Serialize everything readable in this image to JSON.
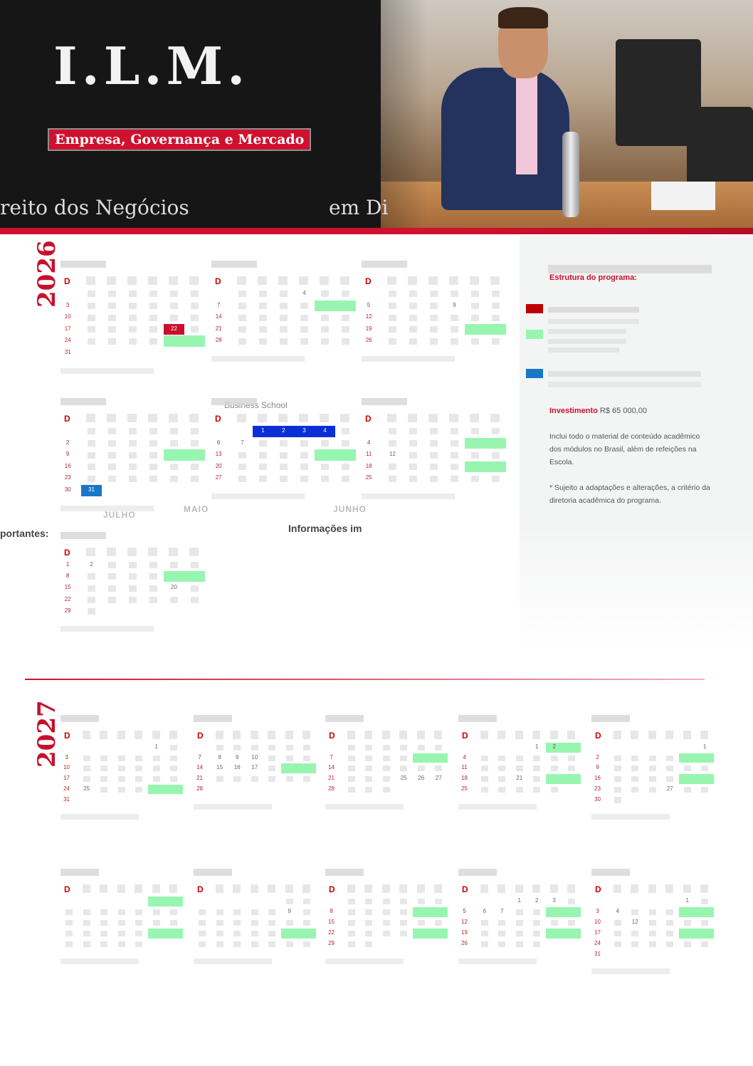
{
  "header": {
    "title": "I.L.M.",
    "tag": "Empresa, Governança e Mercado",
    "subtitle_left": "reito dos Negócios",
    "subtitle_right": "em Di"
  },
  "colors": {
    "accent": "#c8102e",
    "module": "#98f5b0",
    "red_day": "#c8102e",
    "blue_day": "#1877c9",
    "intl": "#0b2fd6"
  },
  "panel": {
    "structure_label": "Estrutura do programa:",
    "legend": [
      {
        "color": "#c00000"
      },
      {
        "color": "#98f5b0"
      },
      {
        "color": "#1877c9"
      }
    ],
    "investment_label": "Investimento",
    "investment_value": "R$ 65 000,00",
    "note1": "Inclui todo o material de conteúdo acadêmico dos módulos no Brasil, além de refeições na Escola.",
    "note2": "* Sujeito a adaptações e alterações, a critério da diretoria acadêmica do programa."
  },
  "fragments": {
    "business_school": "Business School",
    "info": "Informações im",
    "info2": "portantes:",
    "maio": "MAIO",
    "junho": "JUNHO",
    "julho": "JULHO"
  },
  "years": [
    "2026",
    "2027"
  ],
  "calendars": [
    {
      "weeks": [
        [
          null,
          "",
          "",
          "",
          "",
          "",
          ""
        ],
        [
          "3",
          "",
          "",
          "",
          "",
          "",
          ""
        ],
        [
          "10",
          "",
          "",
          "",
          "",
          "",
          ""
        ],
        [
          "17",
          "",
          "",
          "",
          "",
          "22",
          ""
        ],
        [
          "24",
          "",
          "",
          "",
          "",
          "",
          ""
        ],
        [
          "31",
          null,
          null,
          null,
          null,
          null,
          null
        ]
      ],
      "hl": [
        {
          "w": 3,
          "from": 5,
          "to": 5,
          "c": "red_day"
        },
        {
          "w": 4,
          "from": 5,
          "to": 6,
          "c": "module"
        }
      ]
    },
    {
      "weeks": [
        [
          null,
          "",
          "",
          "",
          "4",
          "",
          ""
        ],
        [
          "7",
          "",
          "",
          "",
          "",
          "",
          ""
        ],
        [
          "14",
          "",
          "",
          "",
          "",
          "",
          ""
        ],
        [
          "21",
          "",
          "",
          "",
          "",
          "",
          ""
        ],
        [
          "28",
          "",
          "",
          "",
          "",
          "",
          ""
        ]
      ],
      "hl": [
        {
          "w": 1,
          "from": 5,
          "to": 6,
          "c": "module"
        }
      ]
    },
    {
      "weeks": [
        [
          null,
          "",
          "",
          "",
          "",
          "",
          ""
        ],
        [
          "5",
          "",
          "",
          "",
          "9",
          "",
          ""
        ],
        [
          "12",
          "",
          "",
          "",
          "",
          "",
          ""
        ],
        [
          "19",
          "",
          "",
          "",
          "",
          "",
          ""
        ],
        [
          "26",
          "",
          "",
          "",
          "",
          "",
          ""
        ]
      ],
      "hl": [
        {
          "w": 3,
          "from": 5,
          "to": 6,
          "c": "module"
        }
      ]
    },
    {
      "weeks": [
        [
          null,
          "",
          "",
          "",
          "",
          "",
          ""
        ],
        [
          "2",
          "",
          "",
          "",
          "",
          "",
          ""
        ],
        [
          "9",
          "",
          "",
          "",
          "",
          "",
          ""
        ],
        [
          "16",
          "",
          "",
          "",
          "",
          "",
          ""
        ],
        [
          "23",
          "",
          "",
          "",
          "",
          "",
          ""
        ],
        [
          "30",
          "31",
          null,
          null,
          null,
          null,
          null
        ]
      ],
      "hl": [
        {
          "w": 2,
          "from": 5,
          "to": 6,
          "c": "module"
        },
        {
          "w": 5,
          "from": 1,
          "to": 1,
          "c": "blue_day"
        }
      ]
    },
    {
      "weeks": [
        [
          null,
          null,
          "1",
          "2",
          "3",
          "4",
          ""
        ],
        [
          "6",
          "7",
          "",
          "",
          "",
          "",
          ""
        ],
        [
          "13",
          "",
          "",
          "",
          "",
          "",
          ""
        ],
        [
          "20",
          "",
          "",
          "",
          "",
          "",
          ""
        ],
        [
          "27",
          "",
          "",
          "",
          "",
          "",
          ""
        ]
      ],
      "hl": [
        {
          "w": 0,
          "from": 2,
          "to": 5,
          "c": "intl"
        },
        {
          "w": 2,
          "from": 5,
          "to": 6,
          "c": "module"
        }
      ]
    },
    {
      "weeks": [
        [
          null,
          "",
          "",
          "",
          "",
          "",
          ""
        ],
        [
          "4",
          "",
          "",
          "",
          "",
          "",
          ""
        ],
        [
          "11",
          "12",
          "",
          "",
          "",
          "",
          ""
        ],
        [
          "18",
          "",
          "",
          "",
          "",
          "",
          ""
        ],
        [
          "25",
          "",
          "",
          "",
          "",
          "",
          ""
        ]
      ],
      "hl": [
        {
          "w": 1,
          "from": 5,
          "to": 6,
          "c": "module"
        },
        {
          "w": 3,
          "from": 5,
          "to": 6,
          "c": "module"
        }
      ]
    },
    {
      "weeks": [
        [
          "1",
          "2",
          "",
          "",
          "",
          "",
          ""
        ],
        [
          "8",
          "",
          "",
          "",
          "",
          "",
          ""
        ],
        [
          "15",
          "",
          "",
          "",
          "",
          "20",
          ""
        ],
        [
          "22",
          "",
          "",
          "",
          "",
          "",
          ""
        ],
        [
          "29",
          "",
          null,
          null,
          null,
          null,
          null
        ]
      ],
      "hl": [
        {
          "w": 1,
          "from": 5,
          "to": 6,
          "c": "module"
        }
      ]
    },
    {
      "weeks": [
        [
          null,
          null,
          null,
          null,
          null,
          "1",
          ""
        ],
        [
          "3",
          "",
          "",
          "",
          "",
          "",
          ""
        ],
        [
          "10",
          "",
          "",
          "",
          "",
          "",
          ""
        ],
        [
          "17",
          "",
          "",
          "",
          "",
          "",
          ""
        ],
        [
          "24",
          "25",
          "",
          "",
          "",
          "",
          ""
        ],
        [
          "31",
          null,
          null,
          null,
          null,
          null,
          null
        ]
      ],
      "hl": [
        {
          "w": 4,
          "from": 5,
          "to": 6,
          "c": "module"
        }
      ]
    },
    {
      "weeks": [
        [
          null,
          "",
          "",
          "",
          "",
          "",
          ""
        ],
        [
          "7",
          "8",
          "9",
          "10",
          "",
          "",
          ""
        ],
        [
          "14",
          "15",
          "16",
          "17",
          "",
          "",
          ""
        ],
        [
          "21",
          "",
          "",
          "",
          "",
          "",
          ""
        ],
        [
          "28",
          null,
          null,
          null,
          null,
          null,
          null
        ]
      ],
      "hl": [
        {
          "w": 2,
          "from": 5,
          "to": 6,
          "c": "module"
        }
      ]
    },
    {
      "weeks": [
        [
          null,
          "",
          "",
          "",
          "",
          "",
          ""
        ],
        [
          "7",
          "",
          "",
          "",
          "",
          "",
          ""
        ],
        [
          "14",
          "",
          "",
          "",
          "",
          "",
          ""
        ],
        [
          "21",
          "",
          "",
          "",
          "25",
          "26",
          "27"
        ],
        [
          "28",
          "",
          "",
          "",
          null,
          null,
          null
        ]
      ],
      "hl": [
        {
          "w": 1,
          "from": 5,
          "to": 6,
          "c": "module"
        }
      ]
    },
    {
      "weeks": [
        [
          null,
          null,
          null,
          null,
          "1",
          "2",
          ""
        ],
        [
          "4",
          "",
          "",
          "",
          "",
          "",
          ""
        ],
        [
          "11",
          "",
          "",
          "",
          "",
          "",
          ""
        ],
        [
          "18",
          "",
          "",
          "21",
          "",
          "",
          ""
        ],
        [
          "25",
          "",
          "",
          "",
          "",
          "",
          null
        ]
      ],
      "hl": [
        {
          "w": 0,
          "from": 5,
          "to": 6,
          "c": "module"
        },
        {
          "w": 3,
          "from": 5,
          "to": 6,
          "c": "module"
        }
      ]
    },
    {
      "weeks": [
        [
          null,
          null,
          null,
          null,
          null,
          null,
          "1"
        ],
        [
          "2",
          "",
          "",
          "",
          "",
          "",
          ""
        ],
        [
          "9",
          "",
          "",
          "",
          "",
          "",
          ""
        ],
        [
          "16",
          "",
          "",
          "",
          "",
          "",
          ""
        ],
        [
          "23",
          "",
          "",
          "",
          "27",
          "",
          ""
        ],
        [
          "30",
          "",
          null,
          null,
          null,
          null,
          null
        ]
      ],
      "hl": [
        {
          "w": 1,
          "from": 5,
          "to": 6,
          "c": "module"
        },
        {
          "w": 3,
          "from": 5,
          "to": 6,
          "c": "module"
        }
      ]
    },
    {
      "weeks": [
        [
          null,
          null,
          null,
          null,
          null,
          "",
          ""
        ],
        [
          "",
          "",
          "",
          "",
          "",
          "",
          ""
        ],
        [
          "",
          "",
          "",
          "",
          "",
          "",
          ""
        ],
        [
          "",
          "",
          "",
          "",
          "",
          "",
          ""
        ],
        [
          "",
          "",
          "",
          "",
          "",
          null,
          null
        ]
      ],
      "hl": [
        {
          "w": 0,
          "from": 5,
          "to": 6,
          "c": "module"
        },
        {
          "w": 3,
          "from": 5,
          "to": 6,
          "c": "module"
        }
      ]
    },
    {
      "weeks": [
        [
          null,
          null,
          null,
          null,
          null,
          "",
          ""
        ],
        [
          "",
          "",
          "",
          "",
          "",
          "9",
          ""
        ],
        [
          "",
          "",
          "",
          "",
          "",
          "",
          ""
        ],
        [
          "",
          "",
          "",
          "",
          "",
          "",
          ""
        ],
        [
          "",
          "",
          "",
          "",
          "",
          "",
          ""
        ]
      ],
      "hl": [
        {
          "w": 3,
          "from": 5,
          "to": 6,
          "c": "module"
        }
      ]
    },
    {
      "weeks": [
        [
          null,
          "",
          "",
          "",
          "",
          "",
          ""
        ],
        [
          "8",
          "",
          "",
          "",
          "",
          "",
          ""
        ],
        [
          "15",
          "",
          "",
          "",
          "",
          "",
          ""
        ],
        [
          "22",
          "",
          "",
          "",
          "",
          "",
          ""
        ],
        [
          "29",
          "",
          "",
          null,
          null,
          null,
          null
        ]
      ],
      "hl": [
        {
          "w": 1,
          "from": 5,
          "to": 6,
          "c": "module"
        },
        {
          "w": 3,
          "from": 5,
          "to": 6,
          "c": "module"
        }
      ]
    },
    {
      "weeks": [
        [
          null,
          null,
          null,
          "1",
          "2",
          "3",
          ""
        ],
        [
          "5",
          "6",
          "7",
          "",
          "",
          "",
          ""
        ],
        [
          "12",
          "",
          "",
          "",
          "",
          "",
          ""
        ],
        [
          "19",
          "",
          "",
          "",
          "",
          "",
          ""
        ],
        [
          "26",
          "",
          "",
          "",
          "",
          null,
          null
        ]
      ],
      "hl": [
        {
          "w": 1,
          "from": 5,
          "to": 6,
          "c": "module"
        },
        {
          "w": 3,
          "from": 5,
          "to": 6,
          "c": "module"
        }
      ]
    },
    {
      "weeks": [
        [
          null,
          null,
          null,
          null,
          null,
          "1",
          ""
        ],
        [
          "3",
          "4",
          "",
          "",
          "",
          "",
          ""
        ],
        [
          "10",
          "",
          "12",
          "",
          "",
          "",
          ""
        ],
        [
          "17",
          "",
          "",
          "",
          "",
          "",
          ""
        ],
        [
          "24",
          "",
          "",
          "",
          "",
          "",
          ""
        ],
        [
          "31",
          null,
          null,
          null,
          null,
          null,
          null
        ]
      ],
      "hl": [
        {
          "w": 1,
          "from": 5,
          "to": 6,
          "c": "module"
        },
        {
          "w": 3,
          "from": 5,
          "to": 6,
          "c": "module"
        }
      ]
    }
  ],
  "weekday_label": "D"
}
